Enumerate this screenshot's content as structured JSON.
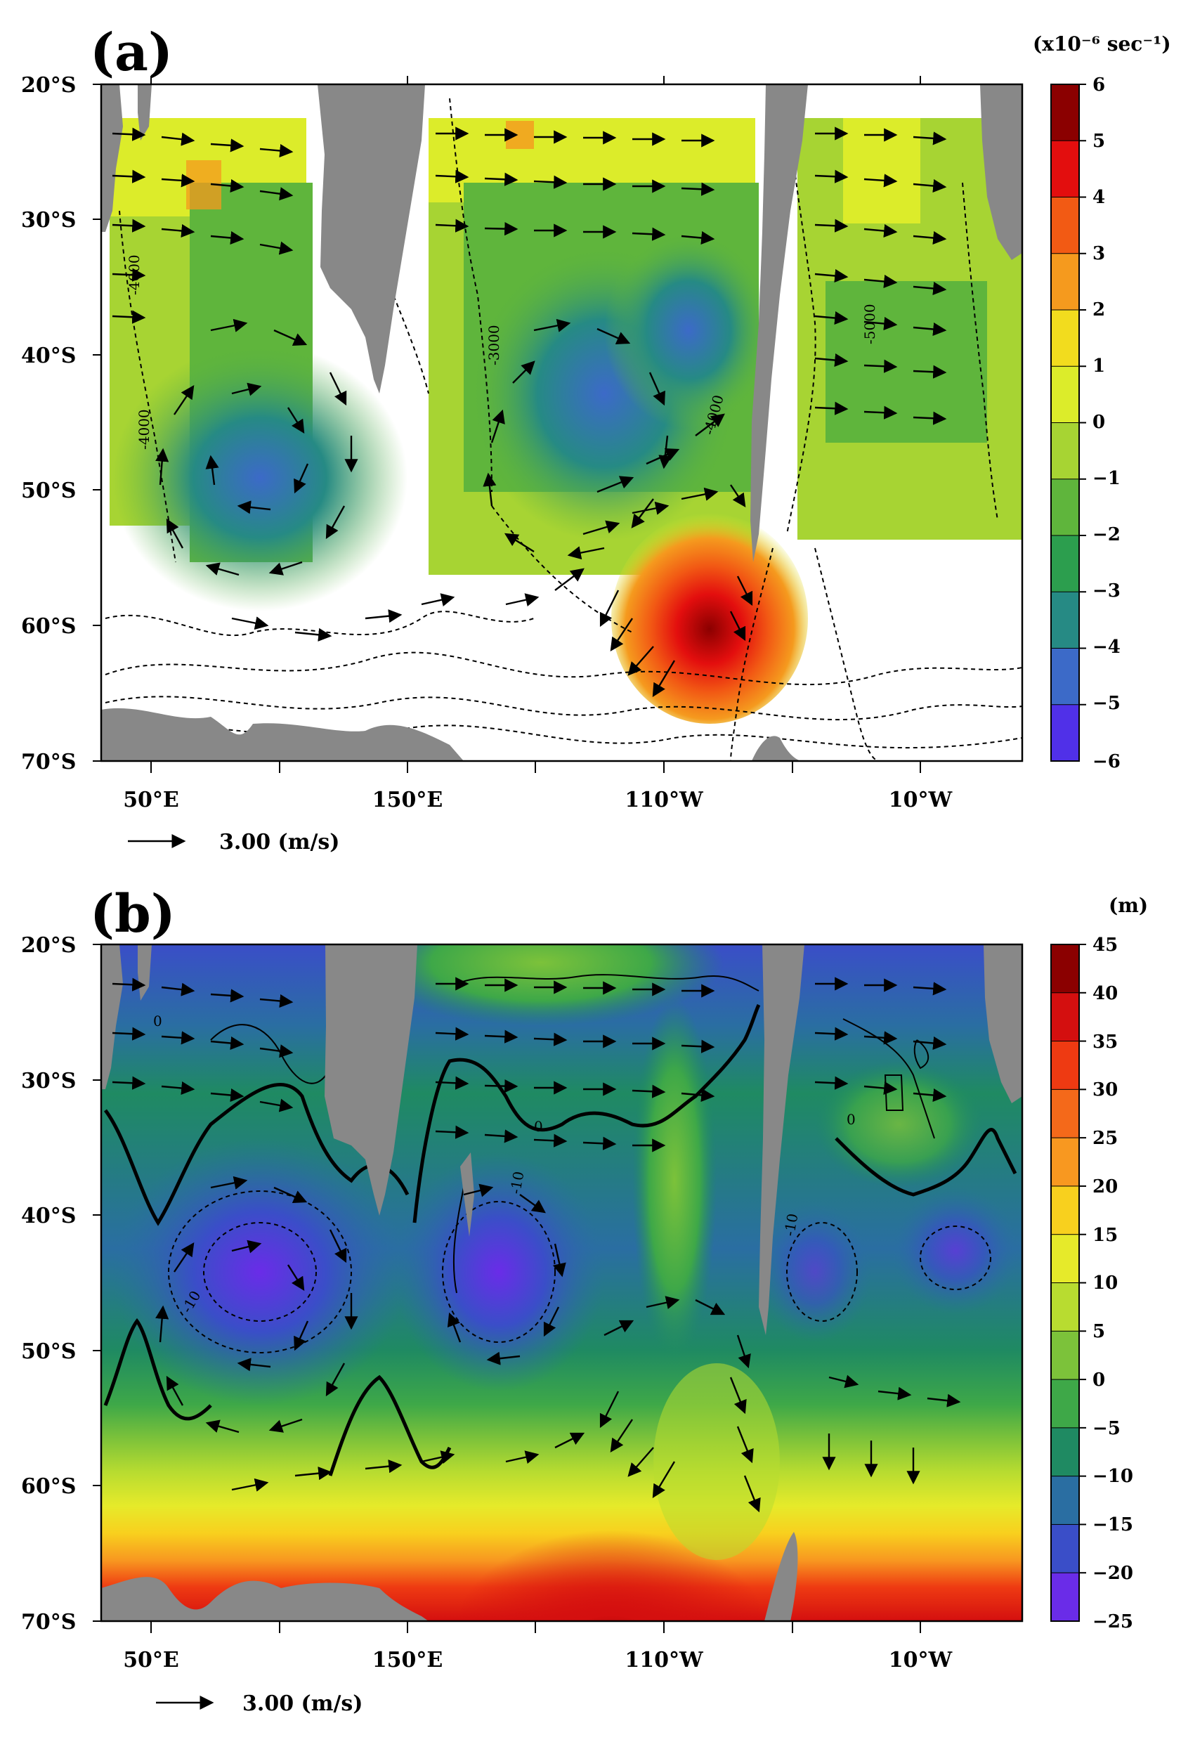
{
  "panels": [
    {
      "label": "(a)",
      "units": "(x10⁻⁶ sec⁻¹)",
      "ref_vector": "3.00 (m/s)",
      "lat_ticks": [
        "20°S",
        "30°S",
        "40°S",
        "50°S",
        "60°S",
        "70°S"
      ],
      "lon_ticks": [
        "50°E",
        "150°E",
        "110°W",
        "10°W"
      ],
      "colorbar_labels": [
        "6",
        "5",
        "4",
        "3",
        "2",
        "1",
        "0",
        "−1",
        "−2",
        "−3",
        "−4",
        "−5",
        "−6"
      ],
      "colorbar_colors": [
        "#8b0000",
        "#e30e0e",
        "#f25a14",
        "#f59a1e",
        "#f2dc1e",
        "#dcec2a",
        "#a7d433",
        "#5fb53c",
        "#2c9e4e",
        "#268a84",
        "#3c6ac8",
        "#5030e8",
        "#c832e8"
      ],
      "contour_labels": [
        "-4000",
        "-3000",
        "-5000",
        "-4000",
        "-4000"
      ]
    },
    {
      "label": "(b)",
      "units": "(m)",
      "ref_vector": "3.00 (m/s)",
      "lat_ticks": [
        "20°S",
        "30°S",
        "40°S",
        "50°S",
        "60°S",
        "70°S"
      ],
      "lon_ticks": [
        "50°E",
        "150°E",
        "110°W",
        "10°W"
      ],
      "colorbar_labels": [
        "45",
        "40",
        "35",
        "30",
        "25",
        "20",
        "15",
        "10",
        "5",
        "0",
        "−5",
        "−10",
        "−15",
        "−20",
        "−25"
      ],
      "colorbar_colors": [
        "#8b0000",
        "#d40f0f",
        "#ee3a12",
        "#f4691a",
        "#f89820",
        "#f8d01e",
        "#e6ea2a",
        "#b8dc30",
        "#7cc23a",
        "#3ea848",
        "#1f8a62",
        "#2a6ea2",
        "#3a4ec8",
        "#6a2ce8",
        "#c838ec"
      ],
      "contour_labels": [
        "0",
        "0",
        "0",
        "-10",
        "-10",
        "-10"
      ]
    }
  ]
}
